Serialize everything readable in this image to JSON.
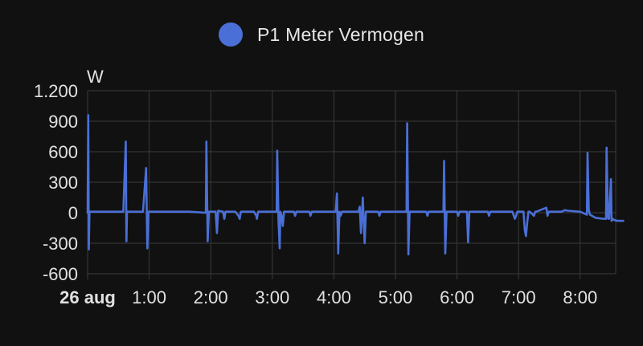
{
  "legend": {
    "label": "P1 Meter Vermogen"
  },
  "colors": {
    "background": "#111111",
    "grid": "#3a3a3a",
    "series": "#4a6fd6",
    "text": "#e1e1e1"
  },
  "chart_data": {
    "type": "line",
    "title": "",
    "xlabel": "",
    "ylabel": "W",
    "ylim": [
      -600,
      1200
    ],
    "xlim_hours": [
      0,
      8.7
    ],
    "y_ticks": [
      {
        "value": 1200,
        "label": "1.200"
      },
      {
        "value": 900,
        "label": "900"
      },
      {
        "value": 600,
        "label": "600"
      },
      {
        "value": 300,
        "label": "300"
      },
      {
        "value": 0,
        "label": "0"
      },
      {
        "value": -300,
        "label": "-300"
      },
      {
        "value": -600,
        "label": "-600"
      }
    ],
    "x_ticks": [
      {
        "value": 0,
        "label": "26 aug",
        "bold": true
      },
      {
        "value": 1,
        "label": "1:00"
      },
      {
        "value": 2,
        "label": "2:00"
      },
      {
        "value": 3,
        "label": "3:00"
      },
      {
        "value": 4,
        "label": "4:00"
      },
      {
        "value": 5,
        "label": "5:00"
      },
      {
        "value": 6,
        "label": "6:00"
      },
      {
        "value": 7,
        "label": "7:00"
      },
      {
        "value": 8,
        "label": "8:00"
      }
    ],
    "grid": true,
    "legend_position": "top-center",
    "series": [
      {
        "name": "P1 Meter Vermogen",
        "x_hours": [
          0.0,
          0.01,
          0.02,
          0.03,
          0.2,
          0.4,
          0.55,
          0.58,
          0.62,
          0.63,
          0.64,
          0.66,
          0.9,
          0.95,
          0.97,
          0.99,
          1.02,
          1.6,
          1.62,
          1.64,
          1.92,
          1.93,
          1.95,
          1.97,
          2.08,
          2.1,
          2.12,
          2.2,
          2.22,
          2.24,
          2.4,
          2.45,
          2.47,
          2.49,
          2.7,
          2.74,
          2.75,
          2.77,
          3.07,
          3.08,
          3.1,
          3.12,
          3.13,
          3.15,
          3.17,
          3.19,
          3.35,
          3.37,
          3.39,
          3.6,
          3.62,
          3.64,
          4.03,
          4.05,
          4.07,
          4.09,
          4.11,
          4.13,
          4.4,
          4.42,
          4.44,
          4.47,
          4.48,
          4.5,
          4.52,
          4.72,
          4.74,
          4.76,
          5.0,
          5.18,
          5.19,
          5.21,
          5.23,
          5.5,
          5.52,
          5.54,
          5.78,
          5.79,
          5.81,
          5.83,
          6.0,
          6.02,
          6.04,
          6.16,
          6.18,
          6.2,
          6.5,
          6.52,
          6.54,
          6.9,
          6.94,
          6.96,
          6.98,
          7.08,
          7.1,
          7.12,
          7.14,
          7.16,
          7.18,
          7.25,
          7.27,
          7.29,
          7.45,
          7.47,
          7.49,
          7.7,
          7.75,
          7.8,
          8.0,
          8.11,
          8.12,
          8.14,
          8.16,
          8.25,
          8.38,
          8.42,
          8.43,
          8.45,
          8.46,
          8.47,
          8.5,
          8.51,
          8.53,
          8.55,
          8.6,
          8.7
        ],
        "y_watts": [
          0,
          960,
          -360,
          10,
          10,
          10,
          10,
          10,
          700,
          -280,
          10,
          10,
          10,
          440,
          -350,
          10,
          10,
          10,
          10,
          10,
          0,
          700,
          -280,
          10,
          10,
          -200,
          20,
          10,
          -60,
          10,
          10,
          -30,
          -60,
          10,
          10,
          -30,
          -60,
          10,
          10,
          610,
          -80,
          -350,
          10,
          -30,
          -130,
          10,
          10,
          -30,
          10,
          10,
          -30,
          10,
          10,
          190,
          -400,
          10,
          -30,
          10,
          10,
          60,
          -200,
          150,
          -20,
          -300,
          10,
          10,
          -30,
          10,
          10,
          10,
          880,
          -410,
          10,
          10,
          -30,
          10,
          10,
          510,
          -400,
          10,
          10,
          -30,
          10,
          10,
          -290,
          10,
          10,
          -30,
          10,
          10,
          -60,
          -30,
          10,
          10,
          -170,
          -230,
          -100,
          10,
          10,
          -30,
          10,
          10,
          50,
          -30,
          10,
          10,
          25,
          20,
          10,
          -20,
          590,
          30,
          -20,
          -50,
          -60,
          -60,
          640,
          -30,
          -60,
          -60,
          330,
          -80,
          -60,
          -70,
          -80,
          -80
        ]
      }
    ]
  }
}
